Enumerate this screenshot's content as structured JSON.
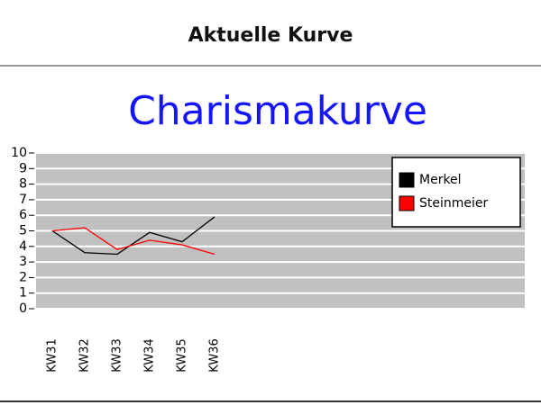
{
  "header": {
    "title": "Aktuelle Kurve"
  },
  "chart_data": {
    "type": "line",
    "title": "Charismakurve",
    "categories": [
      "KW31",
      "KW32",
      "KW33",
      "KW34",
      "KW35",
      "KW36"
    ],
    "series": [
      {
        "name": "Merkel",
        "color": "#000000",
        "values": [
          5,
          3.6,
          3.5,
          4.9,
          4.3,
          5.9
        ]
      },
      {
        "name": "Steinmeier",
        "color": "#ff0000",
        "values": [
          5,
          5.2,
          3.8,
          4.4,
          4.1,
          3.5
        ]
      }
    ],
    "ylim": [
      0,
      10
    ],
    "yticks": [
      0,
      1,
      2,
      3,
      4,
      5,
      6,
      7,
      8,
      9,
      10
    ],
    "grid": true,
    "legend": "upper right"
  }
}
